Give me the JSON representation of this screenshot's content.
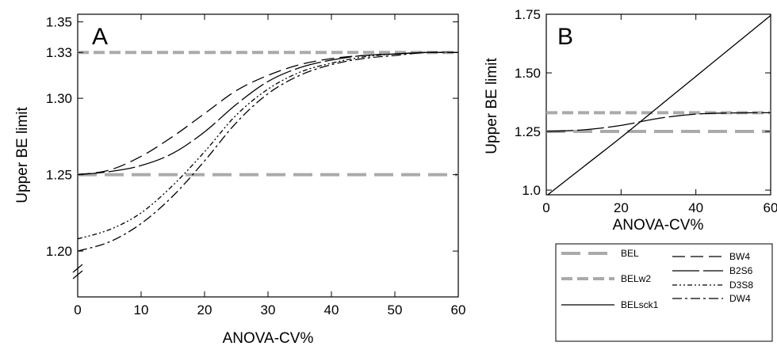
{
  "chart_data": [
    {
      "type": "line",
      "panel_label": "A",
      "xlabel": "ANOVA-CV%",
      "ylabel": "Upper BE limit",
      "xlim": [
        0,
        60
      ],
      "ylim": [
        1.17,
        1.355
      ],
      "x_ticks": [
        0,
        10,
        20,
        30,
        40,
        50,
        60
      ],
      "y_ticks": [
        1.2,
        1.25,
        1.3,
        1.33,
        1.35
      ],
      "y_tick_labels": [
        "1.20",
        "1.25",
        "1.30",
        "1.33",
        "1.35"
      ],
      "y_axis_break": true,
      "series": [
        {
          "name": "BEL",
          "style": "long-dash-gray",
          "color": "#aaaaaa",
          "x": [
            0,
            60
          ],
          "y": [
            1.25,
            1.25
          ]
        },
        {
          "name": "BELw2",
          "style": "short-dash-gray",
          "color": "#aaaaaa",
          "x": [
            0,
            60
          ],
          "y": [
            1.33,
            1.33
          ]
        },
        {
          "name": "BW4",
          "style": "dash",
          "color": "#000000",
          "x": [
            0,
            5,
            10,
            15,
            20,
            25,
            30,
            35,
            40,
            45,
            50,
            55,
            60
          ],
          "y": [
            1.25,
            1.253,
            1.262,
            1.275,
            1.29,
            1.305,
            1.315,
            1.322,
            1.326,
            1.328,
            1.329,
            1.33,
            1.33
          ]
        },
        {
          "name": "B2S6",
          "style": "long-dash",
          "color": "#000000",
          "x": [
            0,
            5,
            10,
            15,
            20,
            25,
            30,
            35,
            40,
            45,
            50,
            55,
            60
          ],
          "y": [
            1.25,
            1.252,
            1.256,
            1.264,
            1.278,
            1.296,
            1.311,
            1.32,
            1.325,
            1.328,
            1.329,
            1.33,
            1.33
          ]
        },
        {
          "name": "D3S8",
          "style": "dash-dot-dot",
          "color": "#000000",
          "x": [
            0,
            5,
            10,
            15,
            20,
            25,
            30,
            35,
            40,
            45,
            50,
            55,
            60
          ],
          "y": [
            1.208,
            1.214,
            1.225,
            1.243,
            1.265,
            1.289,
            1.306,
            1.317,
            1.323,
            1.327,
            1.329,
            1.33,
            1.33
          ]
        },
        {
          "name": "DW4",
          "style": "dash-dot",
          "color": "#000000",
          "x": [
            0,
            5,
            10,
            15,
            20,
            25,
            30,
            35,
            40,
            45,
            50,
            55,
            60
          ],
          "y": [
            1.2,
            1.206,
            1.218,
            1.236,
            1.259,
            1.284,
            1.303,
            1.315,
            1.322,
            1.326,
            1.328,
            1.33,
            1.33
          ]
        }
      ]
    },
    {
      "type": "line",
      "panel_label": "B",
      "xlabel": "ANOVA-CV%",
      "ylabel": "Upper BE limit",
      "xlim": [
        0,
        60
      ],
      "ylim": [
        0.98,
        1.75
      ],
      "x_ticks": [
        0,
        20,
        40,
        60
      ],
      "y_ticks": [
        1.0,
        1.25,
        1.5,
        1.75
      ],
      "y_tick_labels": [
        "1.0",
        "1.25",
        "1.50",
        "1.75"
      ],
      "series": [
        {
          "name": "BEL",
          "style": "long-dash-gray",
          "color": "#aaaaaa",
          "x": [
            0,
            60
          ],
          "y": [
            1.25,
            1.25
          ]
        },
        {
          "name": "BELw2",
          "style": "short-dash-gray",
          "color": "#aaaaaa",
          "x": [
            0,
            60
          ],
          "y": [
            1.33,
            1.33
          ]
        },
        {
          "name": "BELsck1",
          "style": "solid",
          "color": "#000000",
          "x": [
            0,
            10,
            20,
            30,
            40,
            50,
            60
          ],
          "y": [
            0.975,
            1.1,
            1.225,
            1.355,
            1.485,
            1.615,
            1.745
          ]
        },
        {
          "name": "B2S6",
          "style": "long-dash",
          "color": "#000000",
          "x": [
            0,
            10,
            20,
            30,
            40,
            50,
            60
          ],
          "y": [
            1.25,
            1.257,
            1.276,
            1.306,
            1.324,
            1.329,
            1.33
          ]
        }
      ]
    }
  ],
  "legend": {
    "items": [
      {
        "label": "BEL",
        "style": "long-dash-gray"
      },
      {
        "label": "BELw2",
        "style": "short-dash-gray"
      },
      {
        "label": "BELsck1",
        "style": "solid"
      },
      {
        "label": "BW4",
        "style": "dash"
      },
      {
        "label": "B2S6",
        "style": "long-dash"
      },
      {
        "label": "D3S8",
        "style": "dash-dot-dot"
      },
      {
        "label": "DW4",
        "style": "dash-dot"
      }
    ]
  }
}
